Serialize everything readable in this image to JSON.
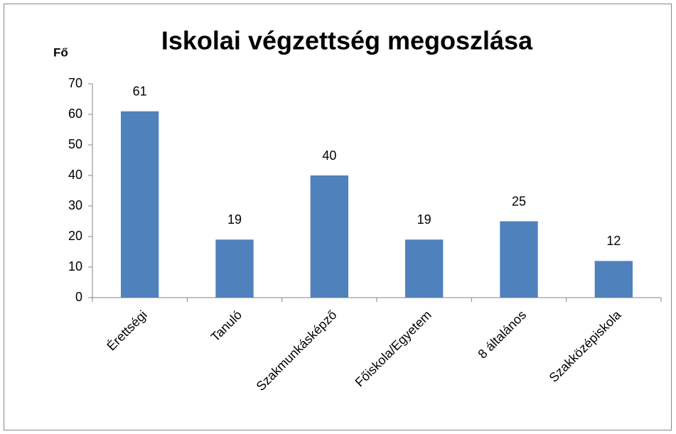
{
  "chart_data": {
    "type": "bar",
    "title": "Iskolai végzettség megoszlása",
    "y_label": "Fő",
    "categories": [
      "Érettségi",
      "Tanuló",
      "Szakmunkásképző",
      "Főiskola/Egyetem",
      "8 általános",
      "Szakközépiskola"
    ],
    "values": [
      61,
      19,
      40,
      19,
      25,
      12
    ],
    "color": "#4f81bd",
    "ylim": [
      0,
      70
    ],
    "yticks": [
      0,
      10,
      20,
      30,
      40,
      50,
      60,
      70
    ],
    "grid": false,
    "data_labels": true
  }
}
